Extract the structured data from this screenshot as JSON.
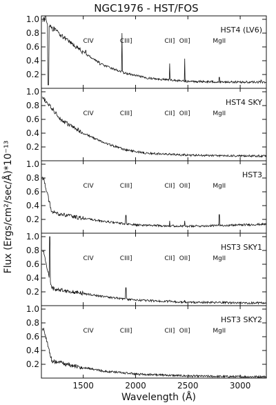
{
  "chart_data": {
    "type": "line",
    "title": "NGC1976 - HST/FOS",
    "xlabel": "Wavelength (Å)",
    "ylabel": "Flux (Ergs/cm²/sec/Å)*10⁻¹³",
    "xlim": [
      1100,
      3250
    ],
    "ylim": [
      0.0,
      1.05
    ],
    "x_ticks": [
      "1500",
      "2000",
      "2500",
      "3000"
    ],
    "y_ticks": [
      "0.2",
      "0.4",
      "0.6",
      "0.8",
      "1.0"
    ],
    "line_labels": [
      {
        "text": "CIV",
        "x": 1549
      },
      {
        "text": "CIII]",
        "x": 1909
      },
      {
        "text": "CII]",
        "x": 2326
      },
      {
        "text": "OII]",
        "x": 2470
      },
      {
        "text": "MgII",
        "x": 2800
      }
    ],
    "panels": [
      {
        "name": "HST4 (LV6)",
        "peaks": {
          "1138": 1.05,
          "1165": 0.05,
          "1210": 0.83,
          "1300": 0.78,
          "1500": 0.53,
          "1660": 0.34
        },
        "features": [
          {
            "x": 1870,
            "y": 0.8
          },
          {
            "x": 1525,
            "y": 0.55
          },
          {
            "x": 2326,
            "y": 0.36
          },
          {
            "x": 2470,
            "y": 0.43
          },
          {
            "x": 2800,
            "y": 0.16
          },
          {
            "x": 3200,
            "y": 0.12
          }
        ],
        "continuum": [
          [
            1120,
            1.0
          ],
          [
            1300,
            0.75
          ],
          [
            1500,
            0.52
          ],
          [
            1700,
            0.33
          ],
          [
            1900,
            0.22
          ],
          [
            2100,
            0.15
          ],
          [
            2500,
            0.1
          ],
          [
            3000,
            0.09
          ],
          [
            3250,
            0.09
          ]
        ]
      },
      {
        "name": "HST4 SKY",
        "continuum": [
          [
            1120,
            0.9
          ],
          [
            1300,
            0.58
          ],
          [
            1500,
            0.4
          ],
          [
            1700,
            0.26
          ],
          [
            1900,
            0.16
          ],
          [
            2100,
            0.11
          ],
          [
            2500,
            0.08
          ],
          [
            3000,
            0.07
          ],
          [
            3250,
            0.07
          ]
        ],
        "features": [
          {
            "x": 1870,
            "y": 0.15
          },
          {
            "x": 2326,
            "y": 0.1
          },
          {
            "x": 2470,
            "y": 0.1
          }
        ]
      },
      {
        "name": "HST3",
        "continuum": [
          [
            1120,
            0.8
          ],
          [
            1200,
            0.3
          ],
          [
            1400,
            0.24
          ],
          [
            1700,
            0.17
          ],
          [
            2000,
            0.12
          ],
          [
            2500,
            0.1
          ],
          [
            3000,
            0.12
          ],
          [
            3250,
            0.13
          ]
        ],
        "features": [
          {
            "x": 1909,
            "y": 0.26
          },
          {
            "x": 2326,
            "y": 0.18
          },
          {
            "x": 2470,
            "y": 0.18
          },
          {
            "x": 2800,
            "y": 0.27
          }
        ]
      },
      {
        "name": "HST3 SKY1",
        "continuum": [
          [
            1120,
            0.78
          ],
          [
            1200,
            0.25
          ],
          [
            1400,
            0.2
          ],
          [
            1700,
            0.13
          ],
          [
            2000,
            0.08
          ],
          [
            2500,
            0.05
          ],
          [
            3000,
            0.04
          ],
          [
            3250,
            0.04
          ]
        ],
        "features": [
          {
            "x": 1180,
            "y": 1.0
          },
          {
            "x": 1909,
            "y": 0.26
          },
          {
            "x": 2326,
            "y": 0.08
          },
          {
            "x": 2470,
            "y": 0.08
          }
        ]
      },
      {
        "name": "HST3 SKY2",
        "continuum": [
          [
            1120,
            0.72
          ],
          [
            1200,
            0.25
          ],
          [
            1400,
            0.18
          ],
          [
            1700,
            0.1
          ],
          [
            2000,
            0.06
          ],
          [
            2500,
            0.03
          ],
          [
            3000,
            0.02
          ],
          [
            3250,
            0.02
          ]
        ],
        "features": [
          {
            "x": 1909,
            "y": 0.08
          },
          {
            "x": 2326,
            "y": 0.03
          },
          {
            "x": 2470,
            "y": 0.03
          }
        ]
      }
    ]
  }
}
